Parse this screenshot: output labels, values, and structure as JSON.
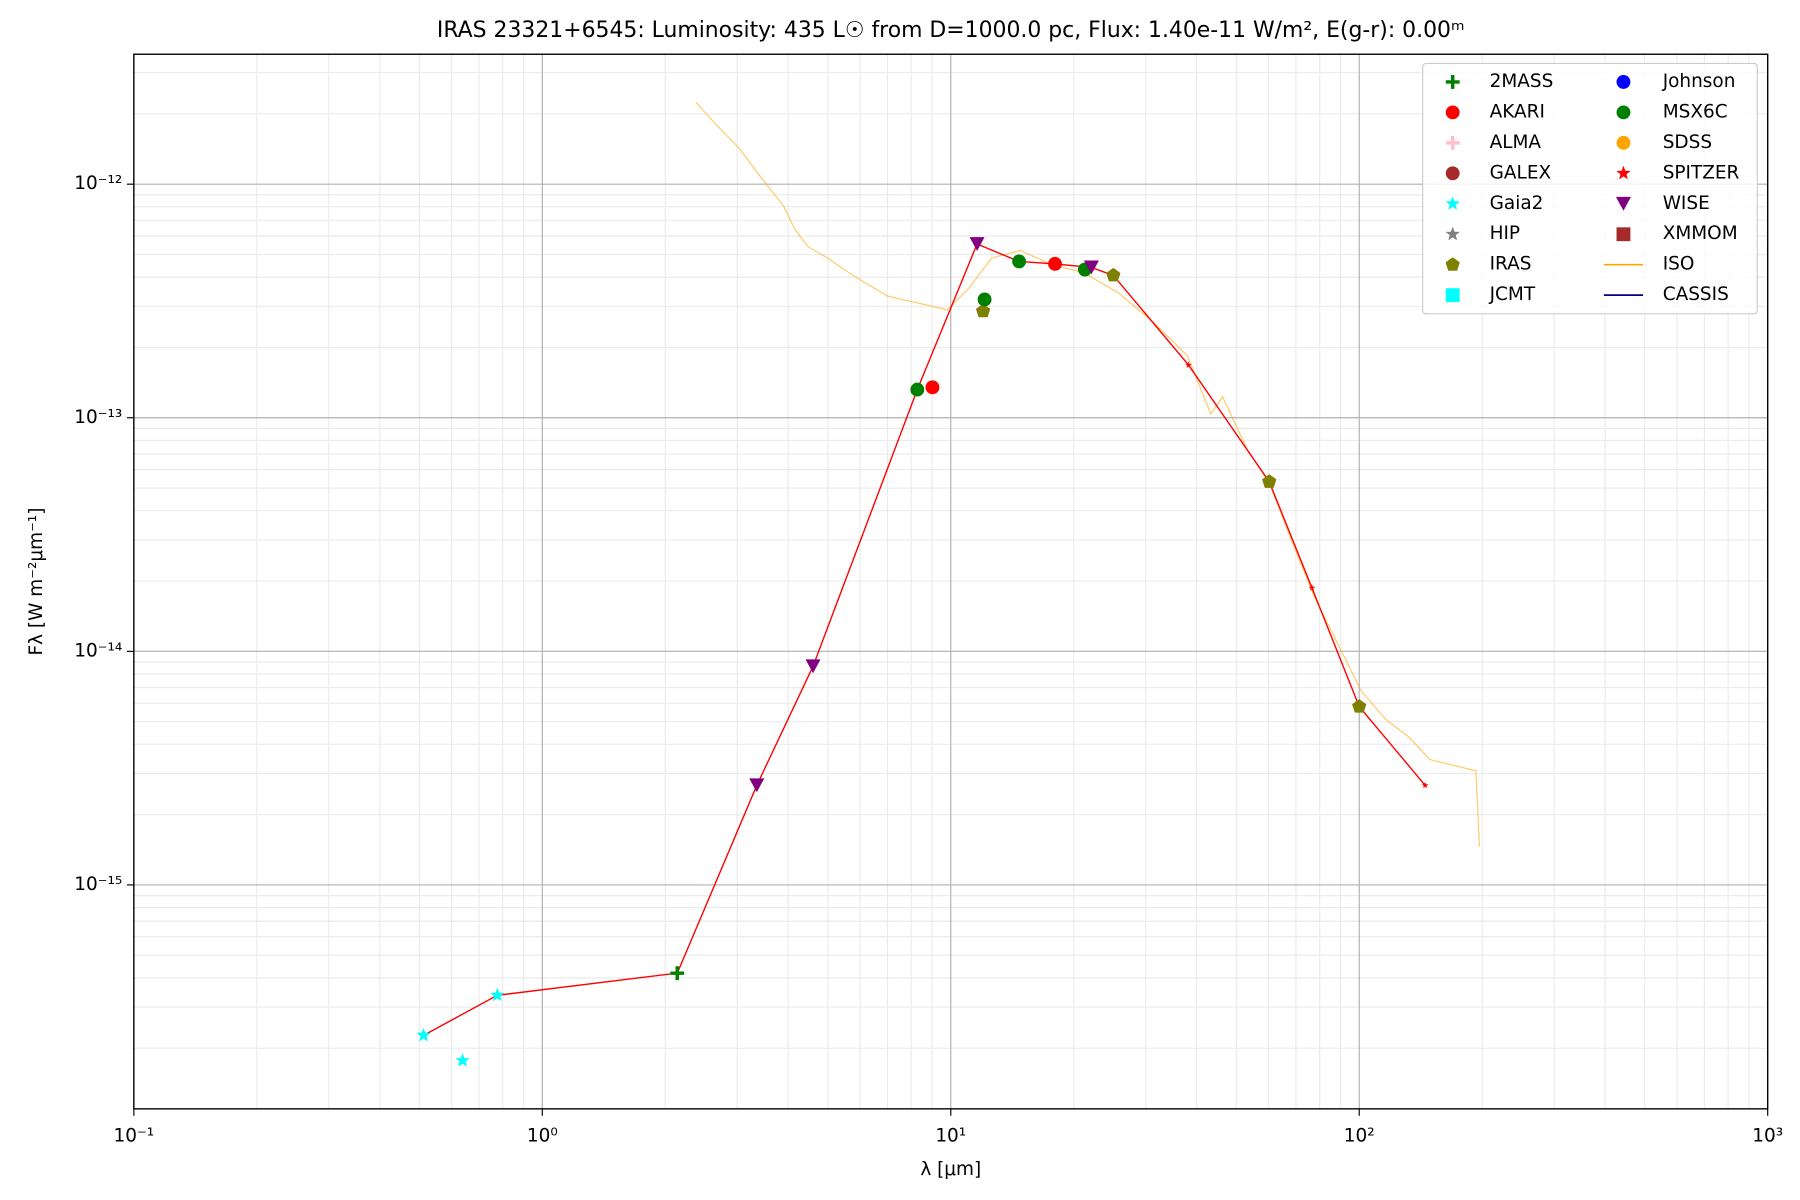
{
  "chart_data": {
    "type": "scatter",
    "title": "IRAS 23321+6545:  Luminosity: 435 L☉ from D=1000.0 pc, Flux: 1.40e-11 W/m², E(g-r): 0.00ᵐ",
    "x_label": "λ [μm]",
    "y_label": "Fλ [W m⁻²μm⁻¹]",
    "xlog": true,
    "ylog": true,
    "grid": true,
    "legend": "upper right",
    "xlim": [
      0.1,
      1000
    ],
    "ylim": [
      1.1e-16,
      3.6e-12
    ],
    "xticks": [
      {
        "value": 0.1,
        "label": "10⁻¹"
      },
      {
        "value": 1,
        "label": "10⁰"
      },
      {
        "value": 10,
        "label": "10¹"
      },
      {
        "value": 100,
        "label": "10²"
      },
      {
        "value": 1000,
        "label": "10³"
      }
    ],
    "yticks": [
      {
        "value": 1e-15,
        "label": "10⁻¹⁵"
      },
      {
        "value": 1e-14,
        "label": "10⁻¹⁴"
      },
      {
        "value": 1e-13,
        "label": "10⁻¹³"
      },
      {
        "value": 1e-12,
        "label": "10⁻¹²"
      }
    ],
    "series": [
      {
        "name": "2MASS",
        "color": "#008000",
        "marker": "plus",
        "x": [
          2.14
        ],
        "values": [
          4.19e-16
        ]
      },
      {
        "name": "AKARI",
        "color": "#ff0000",
        "marker": "circle",
        "x": [
          9.02,
          18.0
        ],
        "values": [
          1.35e-13,
          4.56e-13
        ]
      },
      {
        "name": "ALMA",
        "color": "#ffc0cb",
        "marker": "plus",
        "x": [],
        "values": []
      },
      {
        "name": "GALEX",
        "color": "#a52a2a",
        "marker": "circle",
        "x": [],
        "values": []
      },
      {
        "name": "Gaia2",
        "color": "#00ffff",
        "marker": "star",
        "x": [
          0.512,
          0.776,
          0.638
        ],
        "values": [
          2.27e-16,
          3.37e-16,
          1.77e-16
        ]
      },
      {
        "name": "HIP",
        "color": "#808080",
        "marker": "star",
        "x": [],
        "values": []
      },
      {
        "name": "IRAS",
        "color": "#808000",
        "marker": "pentagon",
        "x": [
          12.0,
          25.0,
          60.2,
          100
        ],
        "values": [
          2.86e-13,
          4.07e-13,
          5.32e-14,
          5.8e-15
        ]
      },
      {
        "name": "JCMT",
        "color": "#00ffff",
        "marker": "square",
        "x": [],
        "values": []
      },
      {
        "name": "Johnson",
        "color": "#0000ff",
        "marker": "circle",
        "x": [],
        "values": []
      },
      {
        "name": "MSX6C",
        "color": "#008000",
        "marker": "circle",
        "x": [
          8.28,
          12.1,
          14.7,
          21.3
        ],
        "values": [
          1.32e-13,
          3.21e-13,
          4.67e-13,
          4.31e-13
        ]
      },
      {
        "name": "SDSS",
        "color": "#ffa500",
        "marker": "circle",
        "x": [],
        "values": []
      },
      {
        "name": "SPITZER",
        "color": "#ff0000",
        "marker": "star",
        "x": [],
        "values": []
      },
      {
        "name": "WISE",
        "color": "#800080",
        "marker": "triangle",
        "x": [
          3.35,
          4.6,
          11.6,
          22.1
        ],
        "values": [
          2.67e-15,
          8.63e-15,
          5.54e-13,
          4.4e-13
        ]
      },
      {
        "name": "XMMOM",
        "color": "#a52a2a",
        "marker": "square",
        "x": [],
        "values": []
      },
      {
        "name": "ISO",
        "color": "#ffa500",
        "marker": "line",
        "x": [
          2.38,
          2.67,
          3.04,
          3.43,
          3.9,
          4.15,
          4.47,
          4.99,
          5.76,
          7.0,
          8.5,
          9.8,
          11.1,
          12.6,
          14.8,
          17.5,
          21.2,
          25.7,
          31.2,
          38.0,
          43.3,
          46.3,
          53.0,
          60.2,
          68.3,
          77.9,
          88.8,
          101,
          116,
          132,
          149,
          170,
          193,
          197
        ],
        "values": [
          2.24e-12,
          1.79e-12,
          1.42e-12,
          1.07e-12,
          8.05e-13,
          6.42e-13,
          5.4e-13,
          4.83e-13,
          4.07e-13,
          3.32e-13,
          3.07e-13,
          2.9e-13,
          3.6e-13,
          4.83e-13,
          5.2e-13,
          4.56e-13,
          4.17e-13,
          3.43e-13,
          2.58e-13,
          1.84e-13,
          1.04e-13,
          1.23e-13,
          7.4e-14,
          5.27e-14,
          2.98e-14,
          1.69e-14,
          1.07e-14,
          6.79e-15,
          5.12e-15,
          4.31e-15,
          3.44e-15,
          3.25e-15,
          3.08e-15,
          1.46e-15
        ]
      },
      {
        "name": "CASSIS",
        "color": "#00008b",
        "marker": "line",
        "x": [],
        "values": []
      },
      {
        "color": "#ff0000",
        "marker": "dotline",
        "x": [
          0.512,
          0.776,
          2.14,
          3.35,
          4.6,
          8.28,
          11.6,
          14.7,
          18.0,
          22.1,
          25.0,
          38.2,
          60.2,
          76.6,
          100,
          145
        ],
        "values": [
          2.27e-16,
          3.37e-16,
          4.19e-16,
          2.67e-15,
          8.63e-15,
          1.32e-13,
          5.54e-13,
          4.67e-13,
          4.56e-13,
          4.4e-13,
          4.07e-13,
          1.68e-13,
          5.32e-14,
          1.87e-14,
          5.8e-15,
          2.67e-15
        ]
      }
    ]
  }
}
